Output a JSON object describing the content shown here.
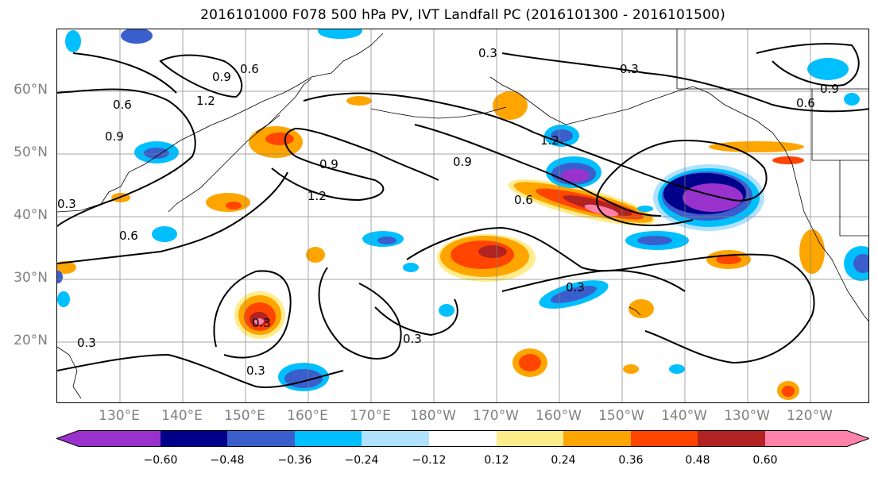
{
  "title": "2016101000 F078 500 hPa PV, IVT Landfall PC (2016101300 - 2016101500)",
  "lat_labels": [
    {
      "text": "60°N",
      "lat": 60
    },
    {
      "text": "50°N",
      "lat": 50
    },
    {
      "text": "40°N",
      "lat": 40
    },
    {
      "text": "30°N",
      "lat": 30
    },
    {
      "text": "20°N",
      "lat": 20
    }
  ],
  "lon_labels": [
    "130°E",
    "140°E",
    "150°E",
    "160°E",
    "170°E",
    "180°W",
    "170°W",
    "160°W",
    "150°W",
    "140°W",
    "130°W",
    "120°W"
  ],
  "colorbar": {
    "colors": [
      "#9932cc",
      "#00008b",
      "#3a5fcd",
      "#00bfff",
      "#b0e2ff",
      "#ffffff",
      "#ffec8b",
      "#ffa500",
      "#ff4500",
      "#b22222",
      "#ff82ab"
    ],
    "ticks": [
      "−0.60",
      "−0.48",
      "−0.36",
      "−0.24",
      "−0.12",
      "0.12",
      "0.24",
      "0.36",
      "0.48",
      "0.60"
    ],
    "tick_values": [
      -0.6,
      -0.48,
      -0.36,
      -0.24,
      -0.12,
      0.12,
      0.24,
      0.36,
      0.48,
      0.6
    ]
  },
  "contour_labels": [
    "0.3",
    "0.6",
    "0.9",
    "1.2"
  ],
  "colors": {
    "contour": "#000000",
    "grid": "#808080",
    "axis_label": "#808080"
  }
}
